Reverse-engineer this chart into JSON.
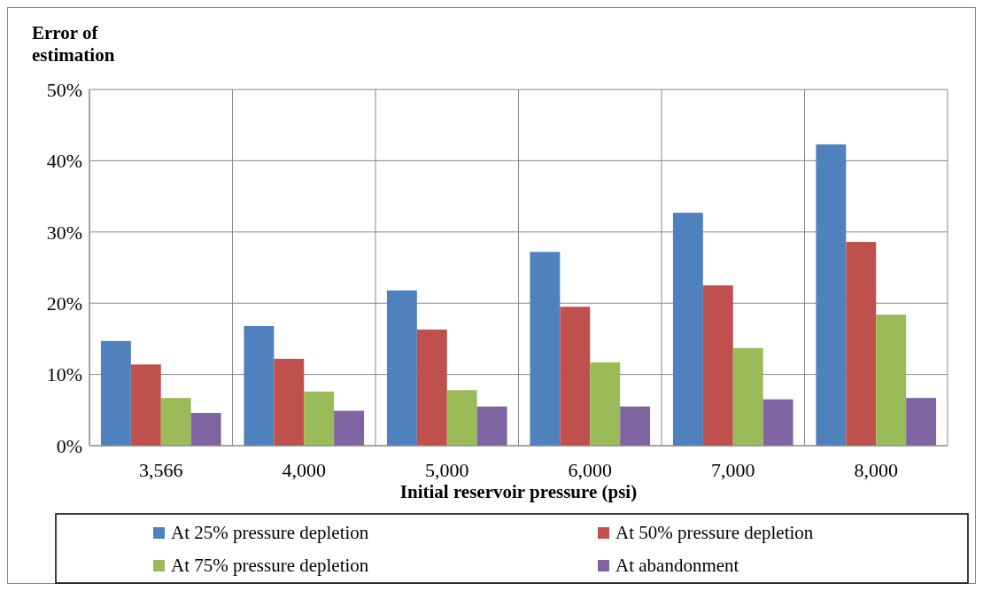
{
  "chart_data": {
    "type": "bar",
    "ylabel": "Error of\nestimation",
    "xlabel": "Initial reservoir pressure (psi)",
    "categories": [
      "3,566",
      "4,000",
      "5,000",
      "6,000",
      "7,000",
      "8,000"
    ],
    "series": [
      {
        "name": "At 25% pressure depletion",
        "color": "#4f81bd",
        "values": [
          14.7,
          16.8,
          21.8,
          27.2,
          32.7,
          42.3
        ]
      },
      {
        "name": "At 50% pressure depletion",
        "color": "#c0504d",
        "values": [
          11.4,
          12.2,
          16.3,
          19.5,
          22.5,
          28.6
        ]
      },
      {
        "name": "At 75% pressure depletion",
        "color": "#9bbb59",
        "values": [
          6.7,
          7.6,
          7.8,
          11.7,
          13.7,
          18.4
        ]
      },
      {
        "name": "At abandonment",
        "color": "#8064a2",
        "values": [
          4.6,
          4.9,
          5.5,
          5.5,
          6.5,
          6.7
        ]
      }
    ],
    "ylim": [
      0,
      50
    ],
    "yticks": [
      {
        "value": 0,
        "label": "0%"
      },
      {
        "value": 10,
        "label": "10%"
      },
      {
        "value": 20,
        "label": "20%"
      },
      {
        "value": 30,
        "label": "30%"
      },
      {
        "value": 40,
        "label": "40%"
      },
      {
        "value": 50,
        "label": "50%"
      }
    ],
    "grid": true,
    "legend": "bottom"
  }
}
